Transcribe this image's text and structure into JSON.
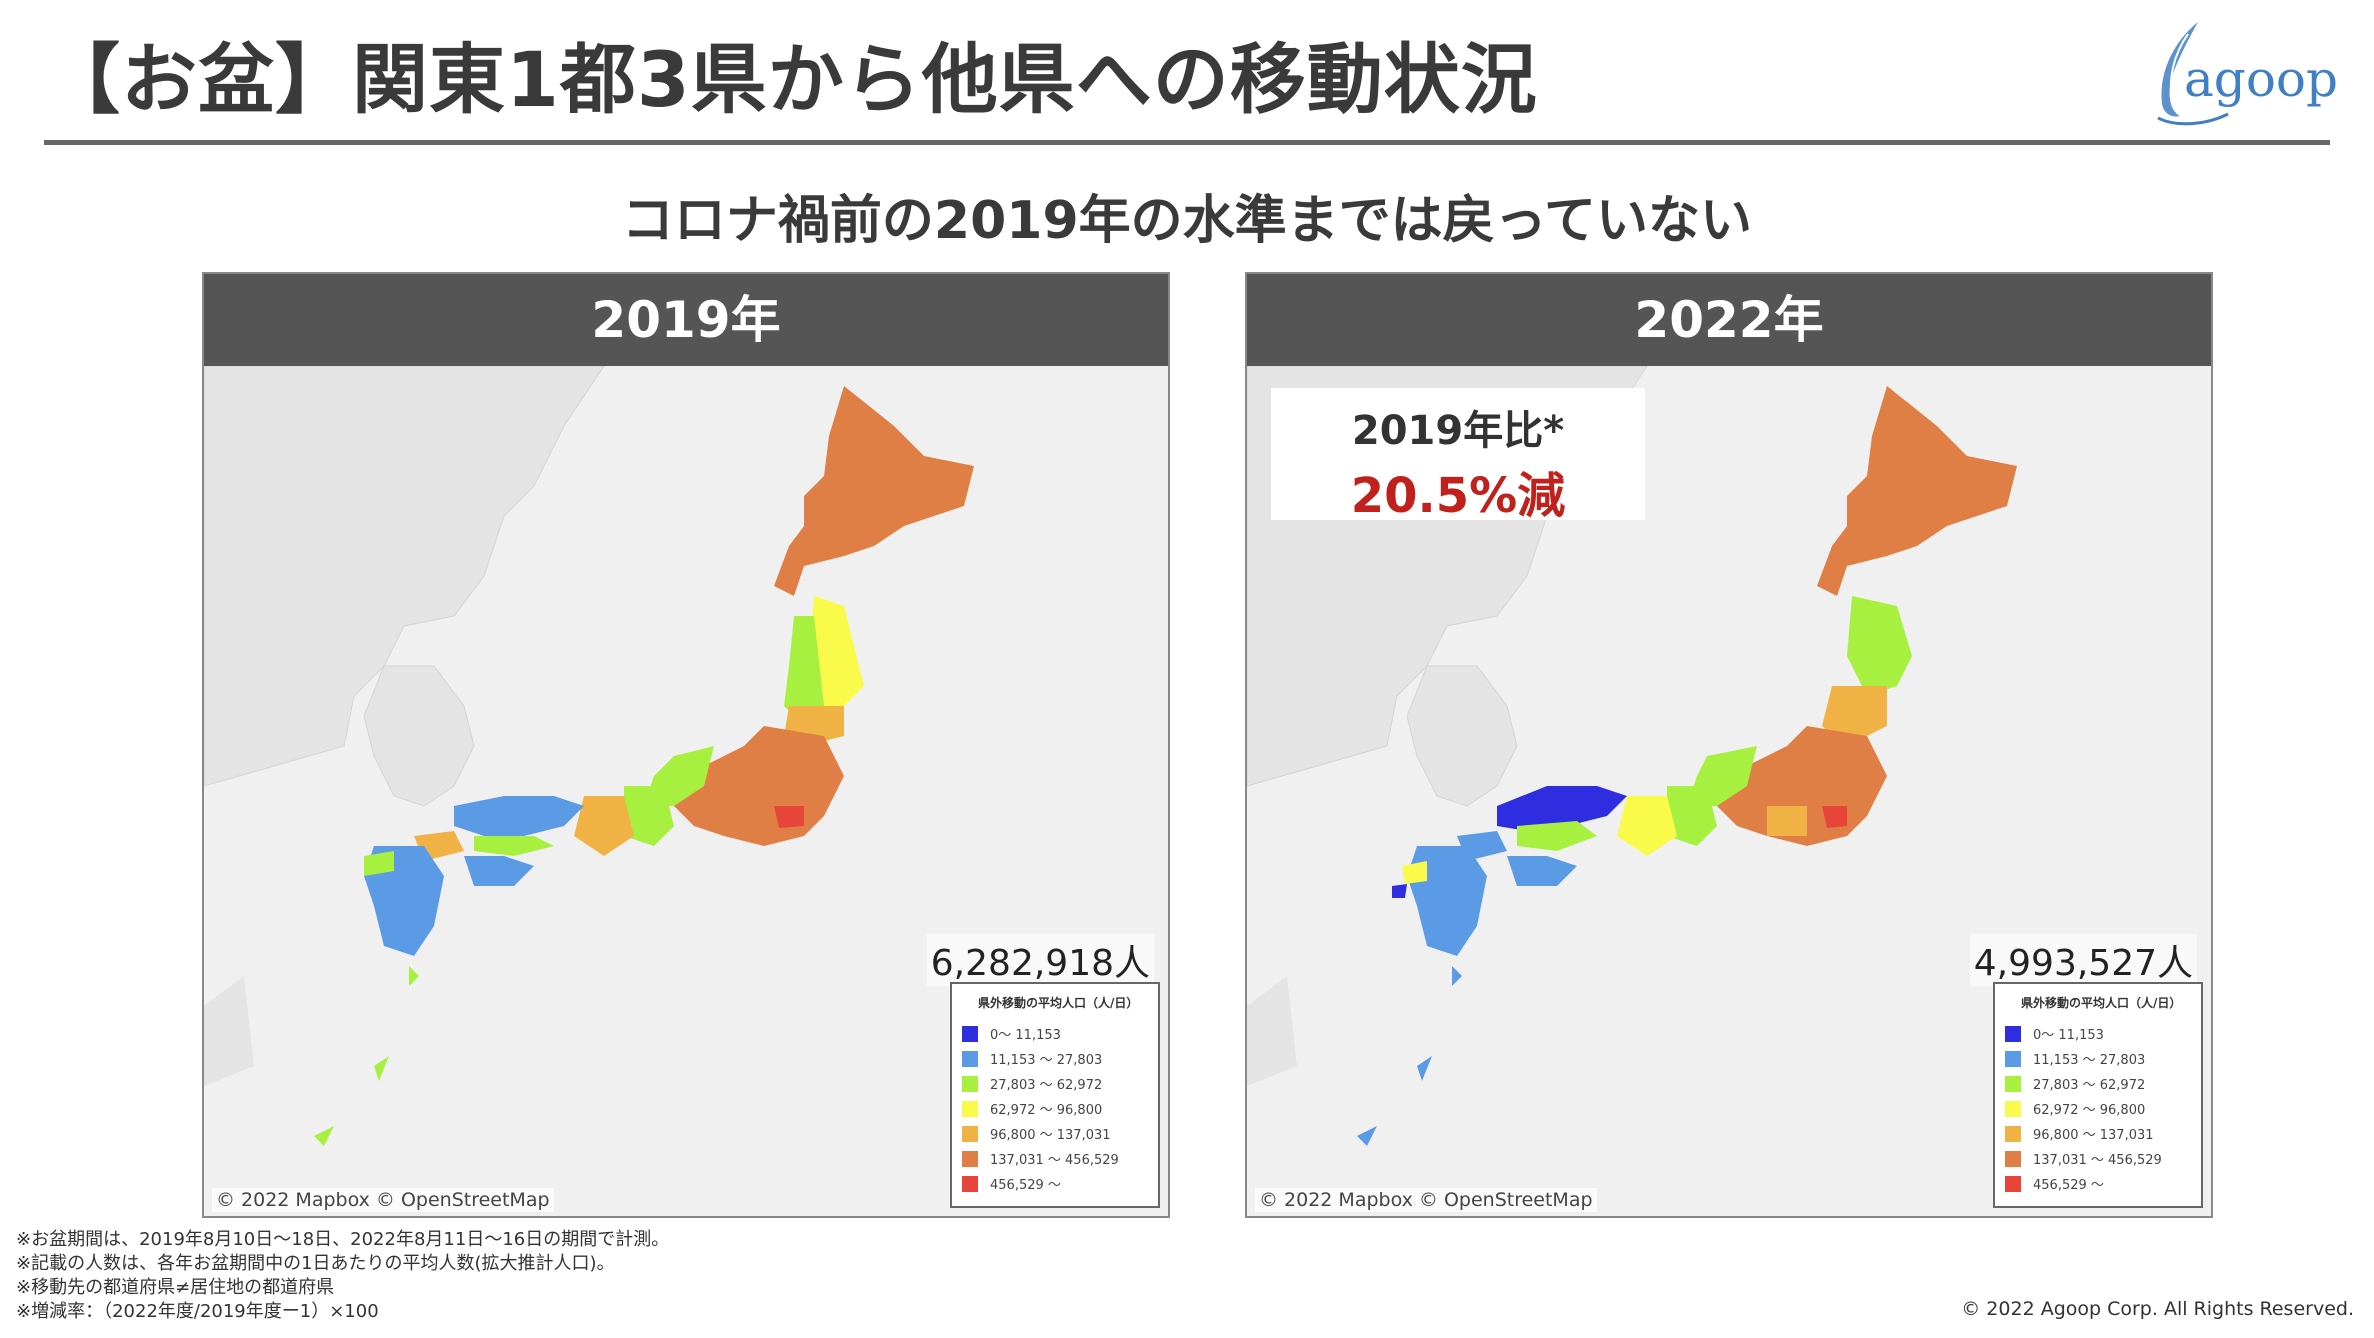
{
  "header": {
    "title": "【お盆】関東1都3県から他県への移動状況",
    "logo_text": "agoop"
  },
  "subtitle": "コロナ禍前の2019年の水準までは戻っていない",
  "panels": [
    {
      "year_label": "2019年",
      "total": "6,282,918人",
      "attribution": "© 2022 Mapbox  © OpenStreetMap",
      "region_colors": {
        "hokkaido": "#e07f45",
        "tohoku_north": "#fafa4a",
        "tohoku_mid": "#a8f040",
        "kanto": "#e07f45",
        "tokyo": "#e8453a",
        "chubu": "#e07f45",
        "hokuriku": "#a8f040",
        "kinki": "#f0b245",
        "chugoku": "#5b9be6",
        "shikoku": "#5b9be6",
        "kyushu": "#5b9be6",
        "okinawa": "#a8f040"
      }
    },
    {
      "year_label": "2022年",
      "total": "4,993,527人",
      "attribution": "© 2022 Mapbox  © OpenStreetMap",
      "compare_label": "2019年比*",
      "compare_value": "20.5%減",
      "region_colors": {
        "hokkaido": "#e07f45",
        "tohoku_north": "#a8f040",
        "tohoku_mid": "#f0b245",
        "kanto": "#e07f45",
        "tokyo": "#e8453a",
        "chubu": "#e07f45",
        "hokuriku": "#a8f040",
        "kinki": "#fafa4a",
        "chugoku": "#2e2ee0",
        "shikoku": "#5b9be6",
        "kyushu": "#5b9be6",
        "okinawa": "#5b9be6"
      }
    }
  ],
  "legend": {
    "title": "県外移動の平均人口（人/日）",
    "items": [
      {
        "label": "0～ 11,153",
        "color": "#2e2ee0"
      },
      {
        "label": "11,153 ～ 27,803",
        "color": "#5b9be6"
      },
      {
        "label": "27,803 ～ 62,972",
        "color": "#a8f040"
      },
      {
        "label": "62,972 ～ 96,800",
        "color": "#fafa4a"
      },
      {
        "label": "96,800 ～ 137,031",
        "color": "#f0b245"
      },
      {
        "label": "137,031 ～ 456,529",
        "color": "#e07f45"
      },
      {
        "label": "456,529 ～",
        "color": "#e8453a"
      }
    ]
  },
  "footnotes": [
    "※お盆期間は、2019年8月10日～18日、2022年8月11日～16日の期間で計測。",
    "※記載の人数は、各年お盆期間中の1日あたりの平均人数(拡大推計人口)。",
    "※移動先の都道府県≠居住地の都道府県",
    "※増減率：（2022年度/2019年度ー1）×100"
  ],
  "copyright": "© 2022 Agoop Corp. All Rights Reserved."
}
